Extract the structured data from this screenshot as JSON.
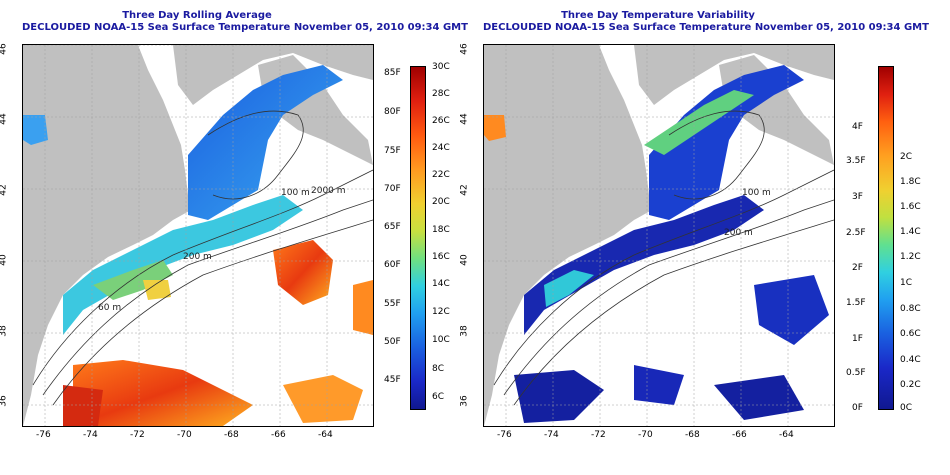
{
  "left_panel": {
    "title": "Three Day Rolling Average",
    "subtitle": "DECLOUDED NOAA-15 Sea Surface Temperature November 05, 2010 09:34 GMT",
    "colorbar_f": [
      "85F",
      "80F",
      "75F",
      "70F",
      "65F",
      "60F",
      "55F",
      "50F",
      "45F"
    ],
    "colorbar_c": [
      "30C",
      "28C",
      "26C",
      "24C",
      "22C",
      "20C",
      "18C",
      "16C",
      "14C",
      "12C",
      "10C",
      "8C",
      "6C"
    ]
  },
  "right_panel": {
    "title": "Three Day Temperature Variability",
    "subtitle": "DECLOUDED NOAA-15 Sea Surface Temperature November 05, 2010 09:34 GMT",
    "colorbar_f": [
      "4F",
      "3.5F",
      "3F",
      "2.5F",
      "2F",
      "1.5F",
      "1F",
      "0.5F",
      "0F"
    ],
    "colorbar_c": [
      "2C",
      "1.8C",
      "1.6C",
      "1.4C",
      "1.2C",
      "1C",
      "0.8C",
      "0.6C",
      "0.4C",
      "0.2C",
      "0C"
    ]
  },
  "axes": {
    "x_ticks": [
      "-76",
      "-74",
      "-72",
      "-70",
      "-68",
      "-66",
      "-64"
    ],
    "y_ticks": [
      "46",
      "44",
      "42",
      "40",
      "38",
      "36"
    ]
  },
  "contour_labels": [
    "100 m",
    "2000 m",
    "200 m",
    "60 m"
  ],
  "colors": {
    "land": "#c0c0c0",
    "water_nodata": "#ffffff",
    "title": "#1a1aa0"
  }
}
